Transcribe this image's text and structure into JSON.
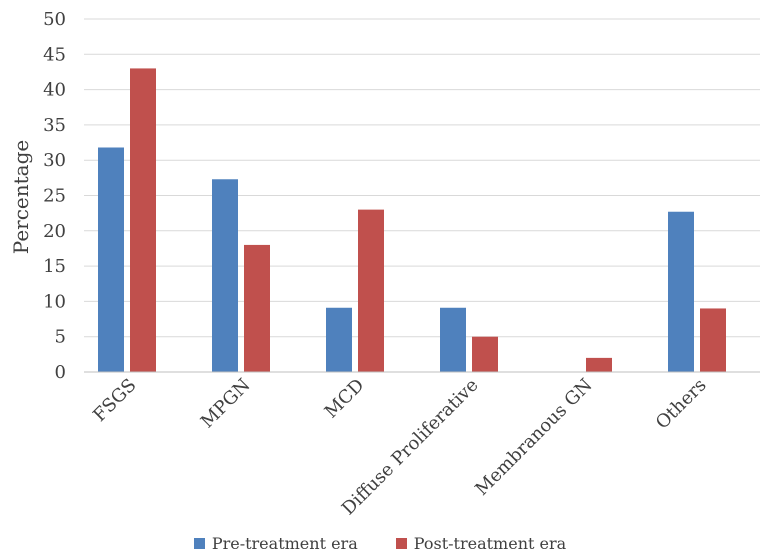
{
  "chart_data": {
    "type": "bar",
    "categories": [
      "FSGS",
      "MPGN",
      "MCD",
      "Diffuse Proliferative",
      "Membranous GN",
      "Others"
    ],
    "series": [
      {
        "name": "Pre-treatment era",
        "color": "#4f81bd",
        "values": [
          31.8,
          27.3,
          9.1,
          9.1,
          0,
          22.7
        ]
      },
      {
        "name": "Post-treatment era",
        "color": "#c0504d",
        "values": [
          43,
          18,
          23,
          5,
          2,
          9
        ]
      }
    ],
    "ylabel": "Percentage",
    "xlabel": "",
    "ylim": [
      0,
      50
    ],
    "yticks": [
      0,
      5,
      10,
      15,
      20,
      25,
      30,
      35,
      40,
      45,
      50
    ],
    "grid": true,
    "legend_position": "bottom"
  }
}
